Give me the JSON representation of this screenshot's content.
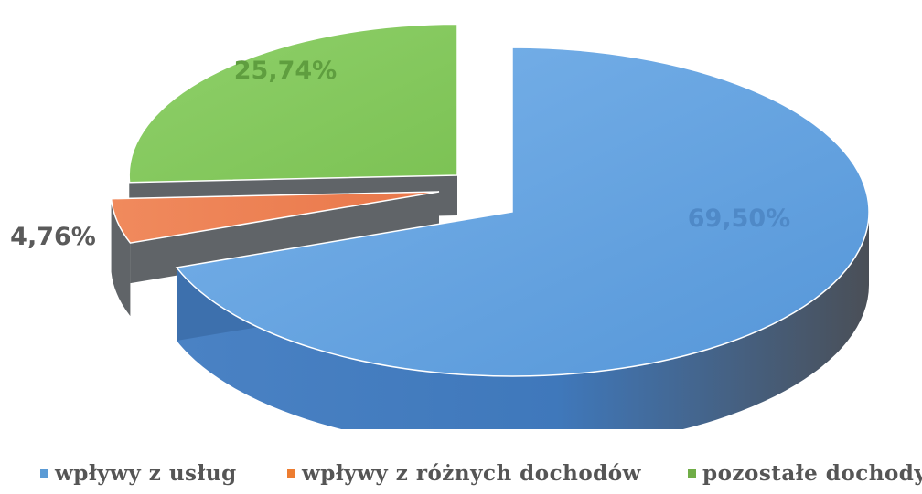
{
  "chart_data": {
    "type": "pie",
    "title": "",
    "categories": [
      "wpływy z usług",
      "wpływy z różnych dochodów",
      "pozostałe dochody"
    ],
    "values": [
      69.5,
      4.76,
      25.74
    ],
    "value_labels": [
      "69,50%",
      "4,76%",
      "25,74%"
    ],
    "colors": [
      "#5b9bd5",
      "#ed7d31",
      "#70ad47"
    ],
    "exploded": true,
    "three_d": true,
    "legend_position": "bottom"
  }
}
